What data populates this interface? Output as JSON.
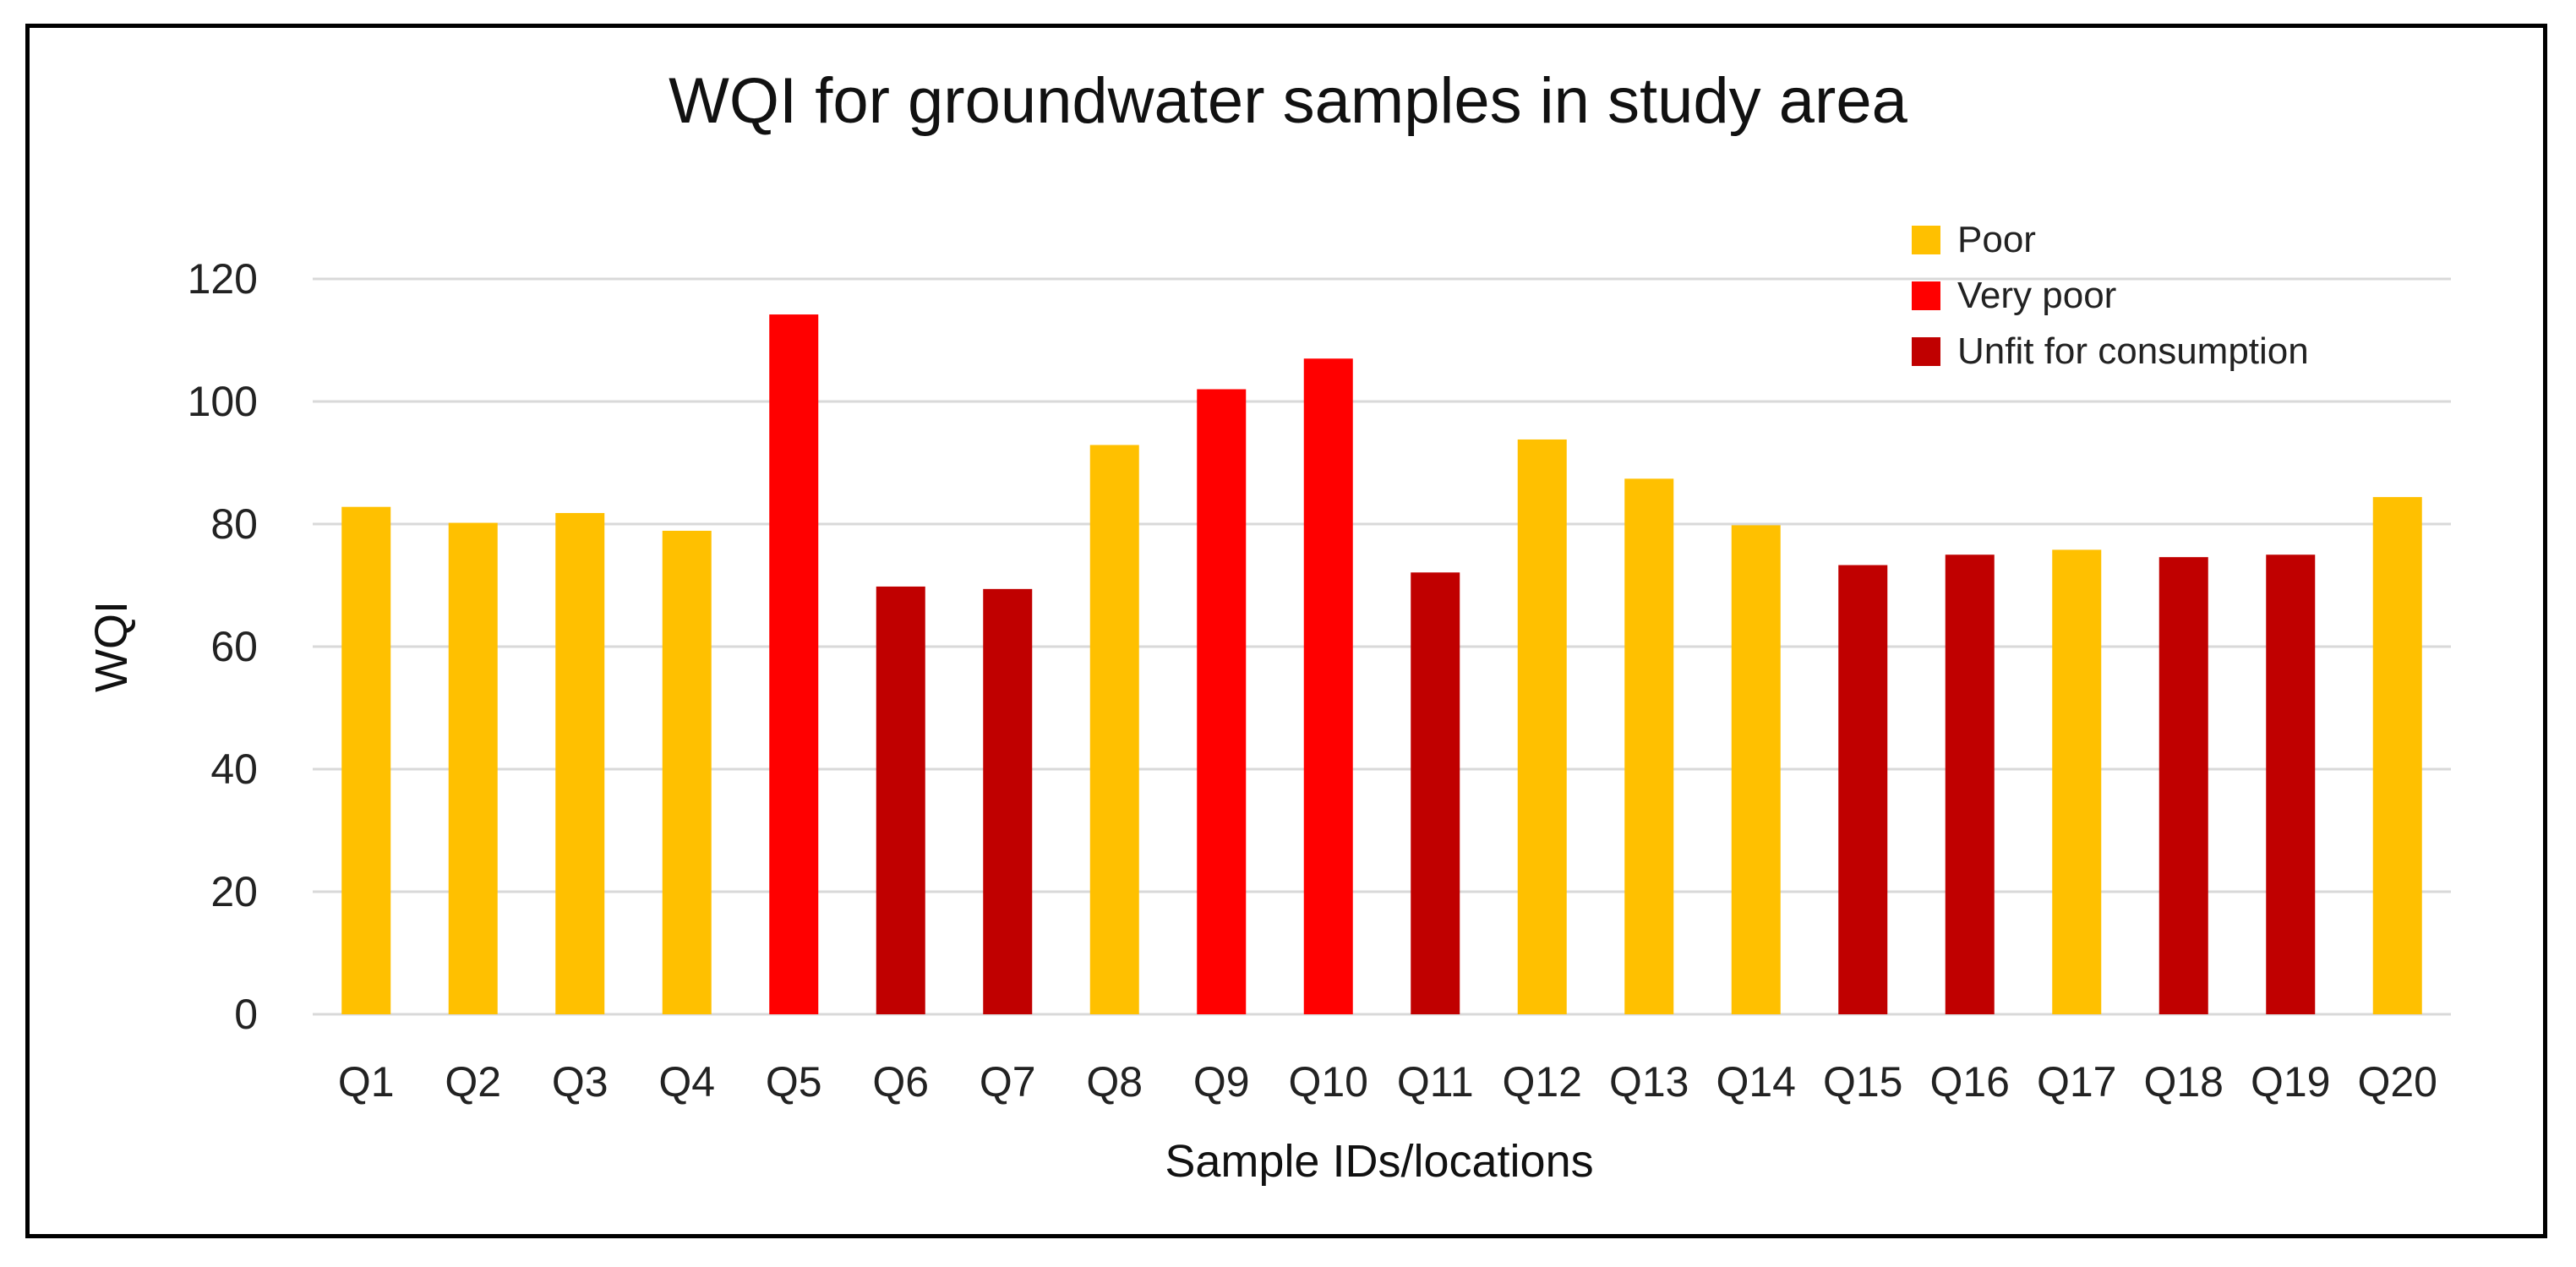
{
  "chart_data": {
    "type": "bar",
    "title": "WQI for groundwater samples in study area",
    "xlabel": "Sample IDs/locations",
    "ylabel": "WQI",
    "ylim": [
      0,
      120
    ],
    "yticks": [
      "0",
      "20",
      "40",
      "60",
      "80",
      "100",
      "120"
    ],
    "grid": true,
    "legend_position": "top-right",
    "categories": [
      "Q1",
      "Q2",
      "Q3",
      "Q4",
      "Q5",
      "Q6",
      "Q7",
      "Q8",
      "Q9",
      "Q10",
      "Q11",
      "Q12",
      "Q13",
      "Q14",
      "Q15",
      "Q16",
      "Q17",
      "Q18",
      "Q19",
      "Q20"
    ],
    "values": [
      82.8,
      80.2,
      81.8,
      78.9,
      114.2,
      69.8,
      69.4,
      92.9,
      102.0,
      107.0,
      72.1,
      93.8,
      87.4,
      79.8,
      73.3,
      75.0,
      75.8,
      74.6,
      75.0,
      84.4
    ],
    "classes": [
      "Poor",
      "Poor",
      "Poor",
      "Poor",
      "Very poor",
      "Unfit for consumption",
      "Unfit for consumption",
      "Poor",
      "Very poor",
      "Very poor",
      "Unfit for consumption",
      "Poor",
      "Poor",
      "Poor",
      "Unfit for consumption",
      "Unfit for consumption",
      "Poor",
      "Unfit for consumption",
      "Unfit for consumption",
      "Poor"
    ],
    "legend": [
      {
        "label": "Poor",
        "color": "#FFC000"
      },
      {
        "label": "Very poor",
        "color": "#FF0000"
      },
      {
        "label": "Unfit for consumption",
        "color": "#C00000"
      }
    ]
  }
}
